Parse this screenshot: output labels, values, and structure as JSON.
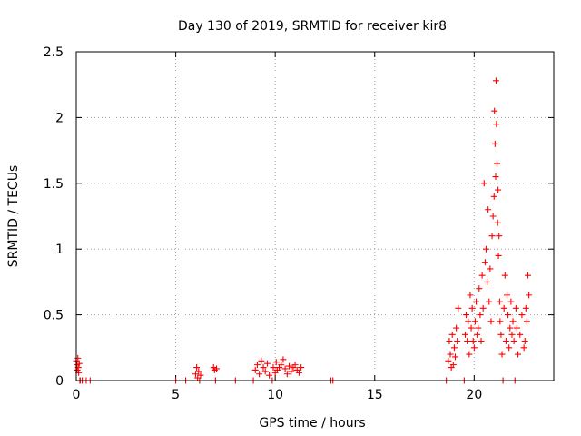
{
  "chart_data": {
    "type": "scatter",
    "title": "Day 130 of 2019, SRMTID for receiver kir8",
    "xlabel": "GPS time / hours",
    "ylabel": "SRMTID / TECUs",
    "xlim": [
      0,
      24
    ],
    "ylim": [
      0,
      2.5
    ],
    "xticks": [
      0,
      5,
      10,
      15,
      20
    ],
    "xtick_labels": [
      "0",
      "5",
      "10",
      "15",
      "20"
    ],
    "yticks": [
      0,
      0.5,
      1,
      1.5,
      2,
      2.5
    ],
    "ytick_labels": [
      "0",
      "0.5",
      "1",
      "1.5",
      "2",
      "2.5"
    ],
    "grid": true,
    "marker": "+",
    "color": "#ff0000",
    "series": [
      {
        "name": "SRMTID",
        "x": [
          0.0,
          0.03,
          0.05,
          0.08,
          0.1,
          0.12,
          0.15,
          0.18,
          0.2,
          0.3,
          0.5,
          0.7,
          5.0,
          5.5,
          6.0,
          6.05,
          6.1,
          6.15,
          6.2,
          6.25,
          6.9,
          6.95,
          7.0,
          7.05,
          8.0,
          8.9,
          9.0,
          9.1,
          9.2,
          9.3,
          9.4,
          9.5,
          9.6,
          9.7,
          9.85,
          9.9,
          10.0,
          10.05,
          10.1,
          10.2,
          10.3,
          10.4,
          10.5,
          10.6,
          10.7,
          10.8,
          10.9,
          11.0,
          11.1,
          11.2,
          11.3,
          12.8,
          12.9,
          18.6,
          18.7,
          18.75,
          18.8,
          18.85,
          18.9,
          18.95,
          19.0,
          19.05,
          19.1,
          19.15,
          19.2,
          19.5,
          19.55,
          19.6,
          19.65,
          19.7,
          19.75,
          19.8,
          19.85,
          19.9,
          19.95,
          20.0,
          20.05,
          20.1,
          20.15,
          20.2,
          20.25,
          20.3,
          20.35,
          20.4,
          20.45,
          20.5,
          20.55,
          20.6,
          20.65,
          20.7,
          20.75,
          20.8,
          20.85,
          20.9,
          20.95,
          21.0,
          21.02,
          21.05,
          21.08,
          21.1,
          21.12,
          21.15,
          21.18,
          21.2,
          21.22,
          21.25,
          21.28,
          21.3,
          21.35,
          21.4,
          21.45,
          21.5,
          21.55,
          21.6,
          21.65,
          21.7,
          21.75,
          21.8,
          21.85,
          21.9,
          21.95,
          22.0,
          22.05,
          22.1,
          22.15,
          22.2,
          22.3,
          22.4,
          22.5,
          22.55,
          22.6,
          22.65,
          22.7,
          22.75
        ],
        "y": [
          0.15,
          0.12,
          0.08,
          0.17,
          0.1,
          0.06,
          0.13,
          0.0,
          0.0,
          0.0,
          0.0,
          0.0,
          0.0,
          0.0,
          0.05,
          0.1,
          0.02,
          0.07,
          0.0,
          0.04,
          0.1,
          0.08,
          0.0,
          0.09,
          0.0,
          0.0,
          0.08,
          0.12,
          0.05,
          0.15,
          0.1,
          0.07,
          0.13,
          0.04,
          0.0,
          0.1,
          0.06,
          0.14,
          0.08,
          0.1,
          0.12,
          0.16,
          0.09,
          0.05,
          0.11,
          0.07,
          0.1,
          0.12,
          0.08,
          0.06,
          0.1,
          0.0,
          0.0,
          0.0,
          0.15,
          0.3,
          0.2,
          0.1,
          0.35,
          0.12,
          0.25,
          0.18,
          0.4,
          0.3,
          0.55,
          0.0,
          0.35,
          0.5,
          0.3,
          0.45,
          0.2,
          0.65,
          0.4,
          0.55,
          0.3,
          0.25,
          0.45,
          0.6,
          0.35,
          0.4,
          0.7,
          0.5,
          0.3,
          0.8,
          0.55,
          1.5,
          0.9,
          1.0,
          0.75,
          1.3,
          0.6,
          0.85,
          0.45,
          1.1,
          1.25,
          1.4,
          2.05,
          1.8,
          1.55,
          2.28,
          1.95,
          1.65,
          1.2,
          1.45,
          0.95,
          1.1,
          0.6,
          0.45,
          0.35,
          0.2,
          0.0,
          0.55,
          0.8,
          0.3,
          0.65,
          0.5,
          0.25,
          0.4,
          0.6,
          0.35,
          0.45,
          0.3,
          0.0,
          0.55,
          0.4,
          0.2,
          0.35,
          0.5,
          0.25,
          0.3,
          0.55,
          0.45,
          0.8,
          0.65
        ]
      }
    ]
  }
}
